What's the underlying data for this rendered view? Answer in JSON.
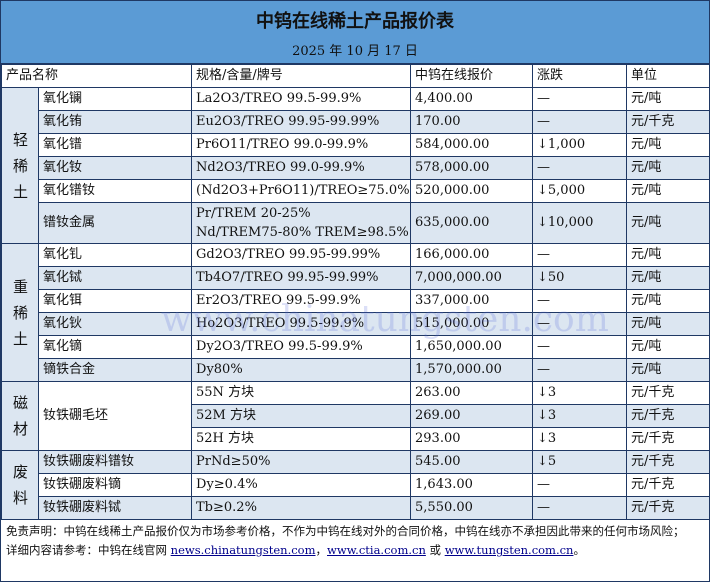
{
  "title": "中钨在线稀土产品报价表",
  "date": "2025 年 10 月 17 日",
  "headers": [
    "产品名称",
    "规格/含量/牌号",
    "中钨在线报价",
    "涨跌",
    "单位"
  ],
  "groups": {
    "light": "轻稀土",
    "heavy": "重稀土",
    "magnet": "磁材",
    "scrap": "废料"
  },
  "rows": [
    {
      "name": "氧化镧",
      "spec": "La2O3/TREO 99.5-99.9%",
      "price": "4,400.00",
      "change": "—",
      "unit": "元/吨"
    },
    {
      "name": "氧化铕",
      "spec": "Eu2O3/TREO 99.95-99.99%",
      "price": "170.00",
      "change": "—",
      "unit": "元/千克"
    },
    {
      "name": "氧化镨",
      "spec": "Pr6O11/TREO 99.0-99.9%",
      "price": "584,000.00",
      "change": "↓1,000",
      "unit": "元/吨"
    },
    {
      "name": "氧化钕",
      "spec": "Nd2O3/TREO 99.0-99.9%",
      "price": "578,000.00",
      "change": "—",
      "unit": "元/吨"
    },
    {
      "name": "氧化镨钕",
      "spec": "(Nd2O3+Pr6O11)/TREO≥75.0%",
      "price": "520,000.00",
      "change": "↓5,000",
      "unit": "元/吨"
    },
    {
      "name": "镨钕金属",
      "spec": "Pr/TREM 20-25%",
      "spec2": "Nd/TREM75-80% TREM≥98.5%",
      "price": "635,000.00",
      "change": "↓10,000",
      "unit": "元/吨"
    },
    {
      "name": "氧化钆",
      "spec": "Gd2O3/TREO 99.95-99.99%",
      "price": "166,000.00",
      "change": "—",
      "unit": "元/吨"
    },
    {
      "name": "氧化铽",
      "spec": "Tb4O7/TREO 99.95-99.99%",
      "price": "7,000,000.00",
      "change": "↓50",
      "unit": "元/吨"
    },
    {
      "name": "氧化铒",
      "spec": "Er2O3/TREO 99.5-99.9%",
      "price": "337,000.00",
      "change": "—",
      "unit": "元/吨"
    },
    {
      "name": "氧化钬",
      "spec": "Ho2O3/TREO 99.5-99.9%",
      "price": "515,000.00",
      "change": "—",
      "unit": "元/吨"
    },
    {
      "name": "氧化镝",
      "spec": "Dy2O3/TREO 99.5-99.9%",
      "price": "1,650,000.00",
      "change": "—",
      "unit": "元/吨"
    },
    {
      "name": "镝铁合金",
      "spec": "Dy80%",
      "price": "1,570,000.00",
      "change": "—",
      "unit": "元/吨"
    },
    {
      "name": "钕铁硼毛坯",
      "spec": "55N 方块",
      "price": "263.00",
      "change": "↓3",
      "unit": "元/千克"
    },
    {
      "spec": "52M 方块",
      "price": "269.00",
      "change": "↓3",
      "unit": "元/千克"
    },
    {
      "spec": "52H 方块",
      "price": "293.00",
      "change": "↓3",
      "unit": "元/千克"
    },
    {
      "name": "钕铁硼废料镨钕",
      "spec": "PrNd≥50%",
      "price": "545.00",
      "change": "↓5",
      "unit": "元/千克"
    },
    {
      "name": "钕铁硼废料镝",
      "spec": "Dy≥0.4%",
      "price": "1,643.00",
      "change": "—",
      "unit": "元/千克"
    },
    {
      "name": "钕铁硼废料铽",
      "spec": "Tb≥0.2%",
      "price": "5,550.00",
      "change": "—",
      "unit": "元/千克"
    }
  ],
  "footer": {
    "disclaimer": "免责声明：中钨在线稀土产品报价仅为市场参考价格，不作为中钨在线对外的合同价格，中钨在线亦不承担因此带来的任何市场风险；",
    "ref_prefix": "详细内容请参考：中钨在线官网 ",
    "link1": "news.chinatungsten.com",
    "sep1": "，",
    "link2": "www.ctia.com.cn",
    "sep2": " 或 ",
    "link3": "www.tungsten.com.cn",
    "end": "。"
  },
  "watermark": "www.chinatungsten.com",
  "colors": {
    "header": "#5b9bd5",
    "row_alt": "#dce6f1",
    "border": "#1f3864"
  }
}
